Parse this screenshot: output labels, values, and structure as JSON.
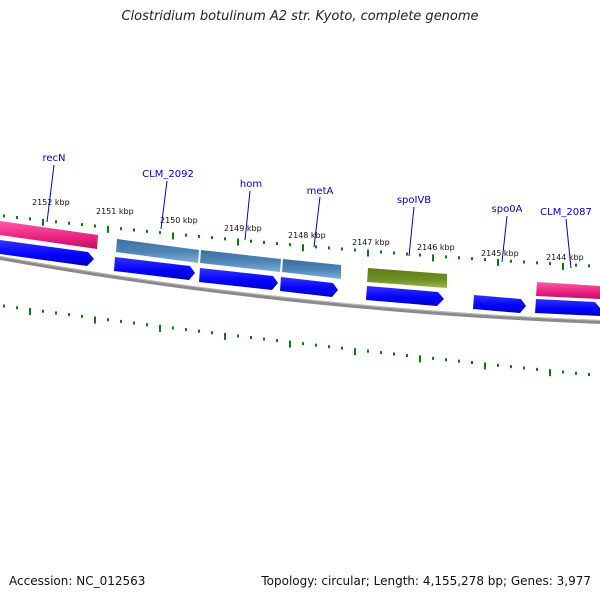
{
  "title": "Clostridium botulinum A2 str. Kyoto, complete genome",
  "footer": {
    "accession": "Accession: NC_012563",
    "summary": "Topology: circular; Length: 4,155,278 bp; Genes: 3,977"
  },
  "scale": {
    "kbp_labels": [
      "2152 kbp",
      "2151 kbp",
      "2150 kbp",
      "2149 kbp",
      "2148 kbp",
      "2147 kbp",
      "2146 kbp",
      "2145 kbp",
      "2144 kbp"
    ]
  },
  "genes": [
    {
      "name": "recN",
      "color": "#e8207e"
    },
    {
      "name": "CLM_2092",
      "color": "#4a7fb0"
    },
    {
      "name": "hom",
      "color": "#4a7fb0"
    },
    {
      "name": "metA",
      "color": "#4a7fb0"
    },
    {
      "name": "spoIVB",
      "color": "#6b8a1f"
    },
    {
      "name": "spo0A",
      "color": "#0000ff"
    },
    {
      "name": "CLM_2087",
      "color": "#e8207e"
    }
  ],
  "colors": {
    "cds": "#0000ff",
    "tick": "#117711",
    "label": "#0000cc",
    "backbone": "#7a7a7a"
  }
}
